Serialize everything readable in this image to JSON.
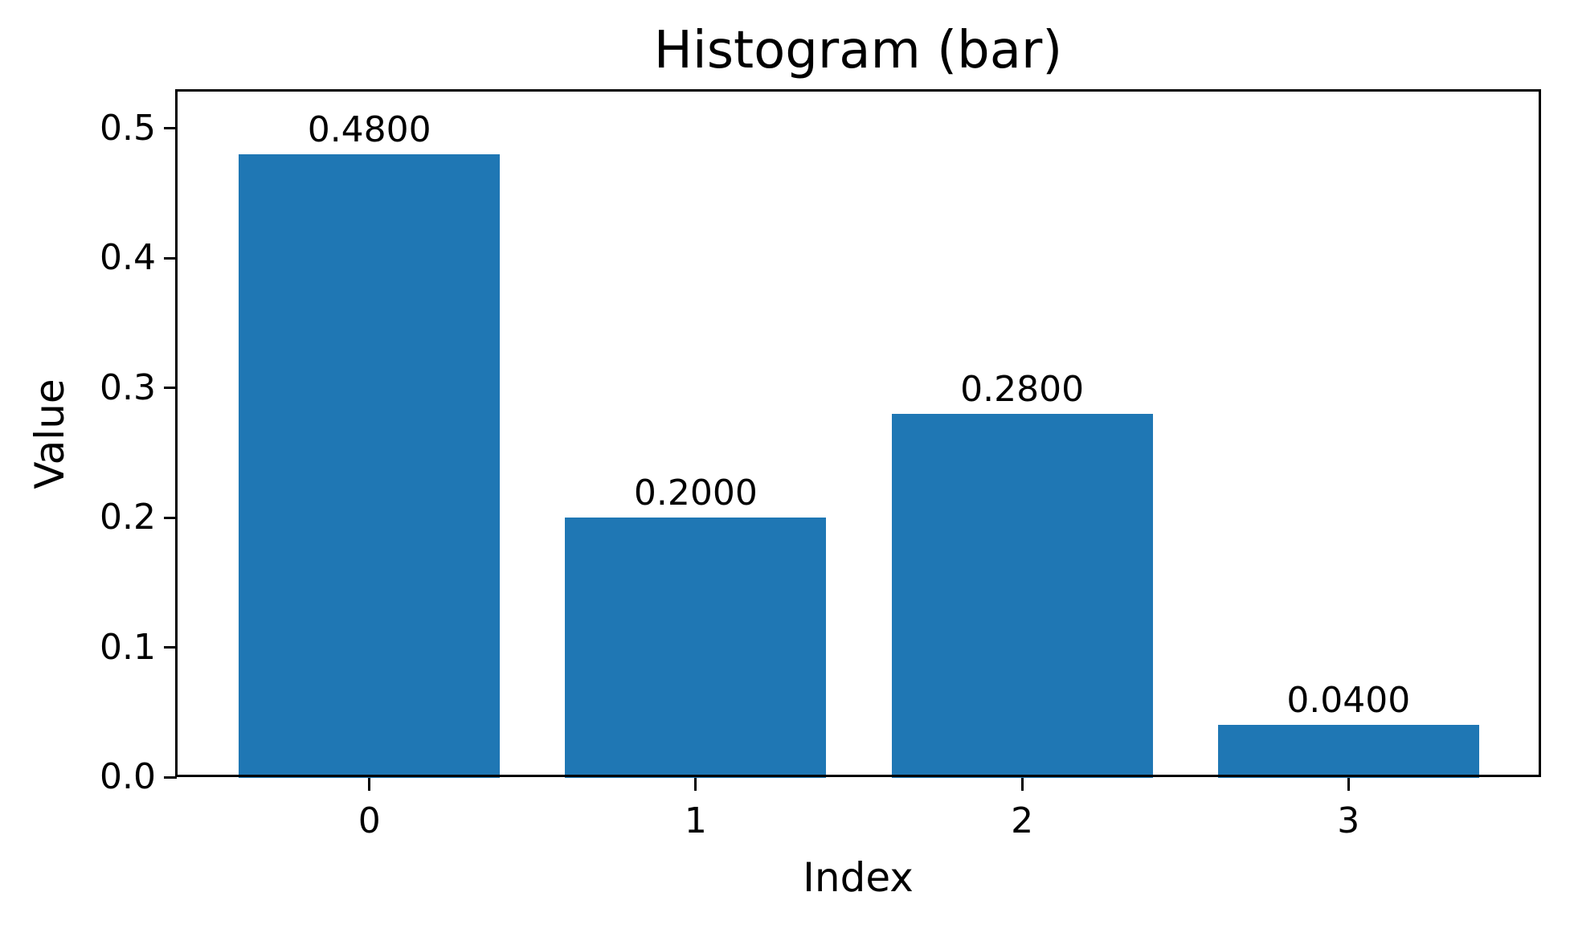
{
  "chart_data": {
    "type": "bar",
    "title": "Histogram (bar)",
    "xlabel": "Index",
    "ylabel": "Value",
    "categories": [
      "0",
      "1",
      "2",
      "3"
    ],
    "x": [
      0,
      1,
      2,
      3
    ],
    "values": [
      0.48,
      0.2,
      0.28,
      0.04
    ],
    "bar_labels": [
      "0.4800",
      "0.2000",
      "0.2800",
      "0.0400"
    ],
    "bar_color": "#1f77b4",
    "bar_width": 0.8,
    "axis_color": "#000000",
    "text_color": "#000000",
    "background_color": "#ffffff",
    "grid": false,
    "legend": null,
    "xlim": [
      -0.59,
      3.59
    ],
    "ylim": [
      0,
      0.529
    ],
    "yticks": {
      "values": [
        0,
        0.1,
        0.2,
        0.3,
        0.4,
        0.5
      ],
      "labels": [
        "0.0",
        "0.1",
        "0.2",
        "0.3",
        "0.4",
        "0.5"
      ]
    }
  }
}
